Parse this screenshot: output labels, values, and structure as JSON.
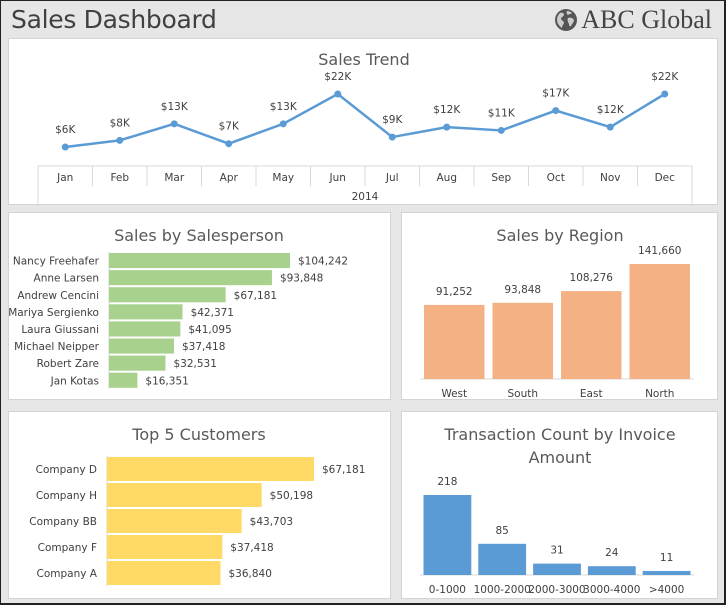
{
  "header": {
    "title": "Sales Dashboard",
    "brand": "ABC Global",
    "brand_icon": "globe-icon"
  },
  "colors": {
    "trend_line": "#5b9bd5",
    "salesperson_bar": "#a9d18e",
    "region_bar": "#f4b183",
    "customer_bar": "#ffd966",
    "transaction_bar": "#5b9bd5"
  },
  "chart_data": [
    {
      "id": "sales-trend",
      "type": "line",
      "title": "Sales Trend",
      "categories": [
        "Jan",
        "Feb",
        "Mar",
        "Apr",
        "May",
        "Jun",
        "Jul",
        "Aug",
        "Sep",
        "Oct",
        "Nov",
        "Dec"
      ],
      "group_label": "2014",
      "values": [
        6,
        8,
        13,
        7,
        13,
        22,
        9,
        12,
        11,
        17,
        12,
        22
      ],
      "value_unit": "K USD",
      "data_labels": [
        "$6K",
        "$8K",
        "$13K",
        "$7K",
        "$13K",
        "$22K",
        "$9K",
        "$12K",
        "$11K",
        "$17K",
        "$12K",
        "$22K"
      ],
      "xlabel": "",
      "ylabel": "",
      "ylim": [
        0,
        25
      ],
      "grid": false,
      "legend": "none"
    },
    {
      "id": "sales-by-salesperson",
      "type": "bar",
      "orientation": "horizontal",
      "title": "Sales by Salesperson",
      "categories": [
        "Nancy Freehafer",
        "Anne Larsen",
        "Andrew Cencini",
        "Mariya Sergienko",
        "Laura Giussani",
        "Michael Neipper",
        "Robert Zare",
        "Jan Kotas"
      ],
      "values": [
        104242,
        93848,
        67181,
        42371,
        41095,
        37418,
        32531,
        16351
      ],
      "data_labels": [
        "$104,242",
        "$93,848",
        "$67,181",
        "$42,371",
        "$41,095",
        "$37,418",
        "$32,531",
        "$16,351"
      ],
      "xlim": [
        0,
        104242
      ],
      "grid": false,
      "legend": "none"
    },
    {
      "id": "sales-by-region",
      "type": "bar",
      "orientation": "vertical",
      "title": "Sales by Region",
      "categories": [
        "West",
        "South",
        "East",
        "North"
      ],
      "values": [
        91252,
        93848,
        108276,
        141660
      ],
      "data_labels": [
        "91,252",
        "93,848",
        "108,276",
        "141,660"
      ],
      "ylim": [
        0,
        160000
      ],
      "grid": false,
      "legend": "none"
    },
    {
      "id": "top-5-customers",
      "type": "bar",
      "orientation": "horizontal",
      "title": "Top 5 Customers",
      "categories": [
        "Company D",
        "Company H",
        "Company BB",
        "Company F",
        "Company A"
      ],
      "values": [
        67181,
        50198,
        43703,
        37418,
        36840
      ],
      "data_labels": [
        "$67,181",
        "$50,198",
        "$43,703",
        "$37,418",
        "$36,840"
      ],
      "xlim": [
        0,
        67181
      ],
      "grid": false,
      "legend": "none"
    },
    {
      "id": "transaction-count",
      "type": "bar",
      "orientation": "vertical",
      "title_lines": [
        "Transaction Count by Invoice",
        "Amount"
      ],
      "categories": [
        "0-1000",
        "1000-2000",
        "2000-3000",
        "3000-4000",
        ">4000"
      ],
      "values": [
        218,
        85,
        31,
        24,
        11
      ],
      "data_labels": [
        "218",
        "85",
        "31",
        "24",
        "11"
      ],
      "ylim": [
        0,
        218
      ],
      "grid": false,
      "legend": "none"
    }
  ]
}
